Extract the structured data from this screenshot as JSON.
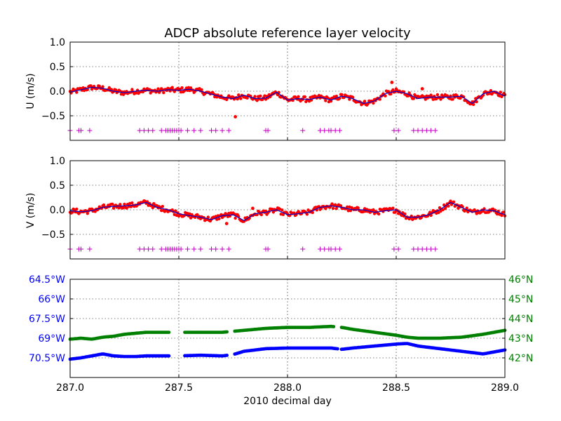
{
  "figure": {
    "title": "ADCP absolute reference layer velocity",
    "xlabel": "2010 decimal day"
  },
  "chart_data": [
    {
      "type": "scatter",
      "panel": "u",
      "ylabel": "U (m/s)",
      "xlim": [
        287.0,
        289.0
      ],
      "ylim": [
        -1.0,
        1.0
      ],
      "xticks": [
        "287.0",
        "287.5",
        "288.0",
        "288.5",
        "289.0"
      ],
      "xtick_values": [
        287.0,
        287.5,
        288.0,
        288.5,
        289.0
      ],
      "yticks": [
        "1.0",
        "0.5",
        "0.0",
        "−0.5"
      ],
      "ytick_values": [
        1.0,
        0.5,
        0.0,
        -0.5
      ],
      "grid": true,
      "colors": {
        "raw": "#ff0000",
        "smooth": "#0000cc",
        "flags": "#bf00bf"
      },
      "trend": {
        "x": [
          287.0,
          287.05,
          287.1,
          287.15,
          287.2,
          287.25,
          287.3,
          287.35,
          287.4,
          287.45,
          287.5,
          287.55,
          287.6,
          287.65,
          287.7,
          287.75,
          287.8,
          287.85,
          287.9,
          287.95,
          288.0,
          288.05,
          288.1,
          288.15,
          288.2,
          288.25,
          288.3,
          288.35,
          288.4,
          288.45,
          288.5,
          288.55,
          288.6,
          288.65,
          288.7,
          288.75,
          288.8,
          288.85,
          288.9,
          288.95,
          289.0
        ],
        "y": [
          -0.02,
          0.03,
          0.08,
          0.06,
          0.0,
          -0.03,
          0.0,
          0.02,
          0.0,
          0.03,
          0.02,
          0.04,
          0.0,
          -0.06,
          -0.12,
          -0.15,
          -0.08,
          -0.15,
          -0.14,
          -0.02,
          -0.18,
          -0.15,
          -0.17,
          -0.12,
          -0.18,
          -0.1,
          -0.15,
          -0.25,
          -0.2,
          -0.05,
          0.0,
          -0.05,
          -0.15,
          -0.12,
          -0.12,
          -0.12,
          -0.1,
          -0.25,
          -0.05,
          0.0,
          -0.1
        ]
      },
      "spread": 0.05,
      "outliers": [
        {
          "x": 287.76,
          "y": -0.52
        },
        {
          "x": 288.48,
          "y": 0.18
        },
        {
          "x": 288.62,
          "y": 0.05
        }
      ],
      "flags_y": -0.8,
      "flags_x": [
        287.0,
        287.04,
        287.05,
        287.09,
        287.32,
        287.34,
        287.36,
        287.38,
        287.42,
        287.44,
        287.45,
        287.46,
        287.47,
        287.48,
        287.49,
        287.5,
        287.51,
        287.54,
        287.57,
        287.6,
        287.65,
        287.67,
        287.7,
        287.73,
        287.9,
        287.91,
        288.07,
        288.15,
        288.17,
        288.19,
        288.2,
        288.22,
        288.24,
        288.49,
        288.51,
        288.58,
        288.6,
        288.62,
        288.64,
        288.66,
        288.68
      ]
    },
    {
      "type": "scatter",
      "panel": "v",
      "ylabel": "V (m/s)",
      "xlim": [
        287.0,
        289.0
      ],
      "ylim": [
        -1.0,
        1.0
      ],
      "xticks": [
        "287.0",
        "287.5",
        "288.0",
        "288.5",
        "289.0"
      ],
      "xtick_values": [
        287.0,
        287.5,
        288.0,
        288.5,
        289.0
      ],
      "yticks": [
        "1.0",
        "0.5",
        "0.0",
        "−0.5"
      ],
      "ytick_values": [
        1.0,
        0.5,
        0.0,
        -0.5
      ],
      "grid": true,
      "colors": {
        "raw": "#ff0000",
        "smooth": "#0000cc",
        "flags": "#bf00bf"
      },
      "trend": {
        "x": [
          287.0,
          287.05,
          287.1,
          287.15,
          287.2,
          287.25,
          287.3,
          287.35,
          287.4,
          287.45,
          287.5,
          287.55,
          287.6,
          287.65,
          287.7,
          287.75,
          287.8,
          287.85,
          287.9,
          287.95,
          288.0,
          288.05,
          288.1,
          288.15,
          288.2,
          288.25,
          288.3,
          288.35,
          288.4,
          288.45,
          288.5,
          288.55,
          288.6,
          288.65,
          288.7,
          288.75,
          288.8,
          288.85,
          288.9,
          288.95,
          289.0
        ],
        "y": [
          -0.02,
          -0.04,
          -0.02,
          0.05,
          0.07,
          0.08,
          0.1,
          0.15,
          0.05,
          0.0,
          -0.08,
          -0.12,
          -0.15,
          -0.2,
          -0.12,
          -0.1,
          -0.22,
          -0.08,
          -0.05,
          0.0,
          -0.1,
          -0.08,
          -0.05,
          0.05,
          0.08,
          0.05,
          0.0,
          0.0,
          -0.05,
          -0.02,
          0.0,
          -0.15,
          -0.15,
          -0.1,
          0.0,
          0.15,
          0.05,
          -0.05,
          0.0,
          -0.02,
          -0.1
        ]
      },
      "spread": 0.05,
      "outliers": [
        {
          "x": 287.72,
          "y": -0.28
        },
        {
          "x": 287.84,
          "y": 0.03
        }
      ],
      "flags_y": -0.8,
      "flags_x": [
        287.0,
        287.04,
        287.05,
        287.09,
        287.32,
        287.34,
        287.36,
        287.38,
        287.42,
        287.44,
        287.45,
        287.46,
        287.47,
        287.48,
        287.49,
        287.5,
        287.51,
        287.54,
        287.57,
        287.6,
        287.65,
        287.67,
        287.7,
        287.73,
        287.9,
        287.91,
        288.07,
        288.15,
        288.17,
        288.19,
        288.2,
        288.22,
        288.24,
        288.49,
        288.51,
        288.58,
        288.6,
        288.62,
        288.64,
        288.66,
        288.68
      ]
    },
    {
      "type": "scatter",
      "panel": "position",
      "xlim": [
        287.0,
        289.0
      ],
      "left_axis": {
        "ticks": [
          "64.5°W",
          "66°W",
          "67.5°W",
          "69°W",
          "70.5°W"
        ],
        "tick_values": [
          64.5,
          66.0,
          67.5,
          69.0,
          70.5
        ],
        "range": [
          64.5,
          72.0
        ],
        "color": "#0000ff"
      },
      "right_axis": {
        "ticks": [
          "46°N",
          "45°N",
          "44°N",
          "43°N",
          "42°N"
        ],
        "tick_values": [
          46,
          45,
          44,
          43,
          42
        ],
        "range": [
          41.0,
          46.0
        ],
        "color": "#008000"
      },
      "grid": true,
      "longitude": {
        "color": "#0000ff",
        "x": [
          287.0,
          287.05,
          287.1,
          287.15,
          287.2,
          287.25,
          287.3,
          287.35,
          287.4,
          287.45,
          287.5,
          287.6,
          287.7,
          287.75,
          287.8,
          287.9,
          288.0,
          288.1,
          288.2,
          288.25,
          288.3,
          288.4,
          288.5,
          288.55,
          288.6,
          288.7,
          288.8,
          288.9,
          289.0
        ],
        "y": [
          70.6,
          70.5,
          70.35,
          70.2,
          70.35,
          70.4,
          70.4,
          70.35,
          70.35,
          70.35,
          70.35,
          70.3,
          70.35,
          70.25,
          70.0,
          69.8,
          69.75,
          69.75,
          69.75,
          69.85,
          69.75,
          69.6,
          69.45,
          69.4,
          69.6,
          69.8,
          70.0,
          70.2,
          69.9
        ]
      },
      "latitude": {
        "color": "#008000",
        "x": [
          287.0,
          287.05,
          287.1,
          287.15,
          287.2,
          287.25,
          287.3,
          287.35,
          287.4,
          287.45,
          287.5,
          287.6,
          287.7,
          287.75,
          287.8,
          287.9,
          288.0,
          288.1,
          288.2,
          288.25,
          288.3,
          288.4,
          288.5,
          288.55,
          288.6,
          288.7,
          288.8,
          288.9,
          289.0
        ],
        "y": [
          42.95,
          43.0,
          42.95,
          43.05,
          43.1,
          43.2,
          43.25,
          43.3,
          43.3,
          43.3,
          43.3,
          43.3,
          43.3,
          43.35,
          43.4,
          43.5,
          43.55,
          43.55,
          43.6,
          43.55,
          43.45,
          43.3,
          43.15,
          43.05,
          43.0,
          43.0,
          43.05,
          43.2,
          43.4
        ]
      },
      "gaps": [
        [
          287.455,
          287.525
        ],
        [
          287.725,
          287.755
        ],
        [
          288.235,
          288.245
        ]
      ],
      "lat_extra_gaps": [
        [
          288.215,
          288.235
        ]
      ]
    }
  ]
}
